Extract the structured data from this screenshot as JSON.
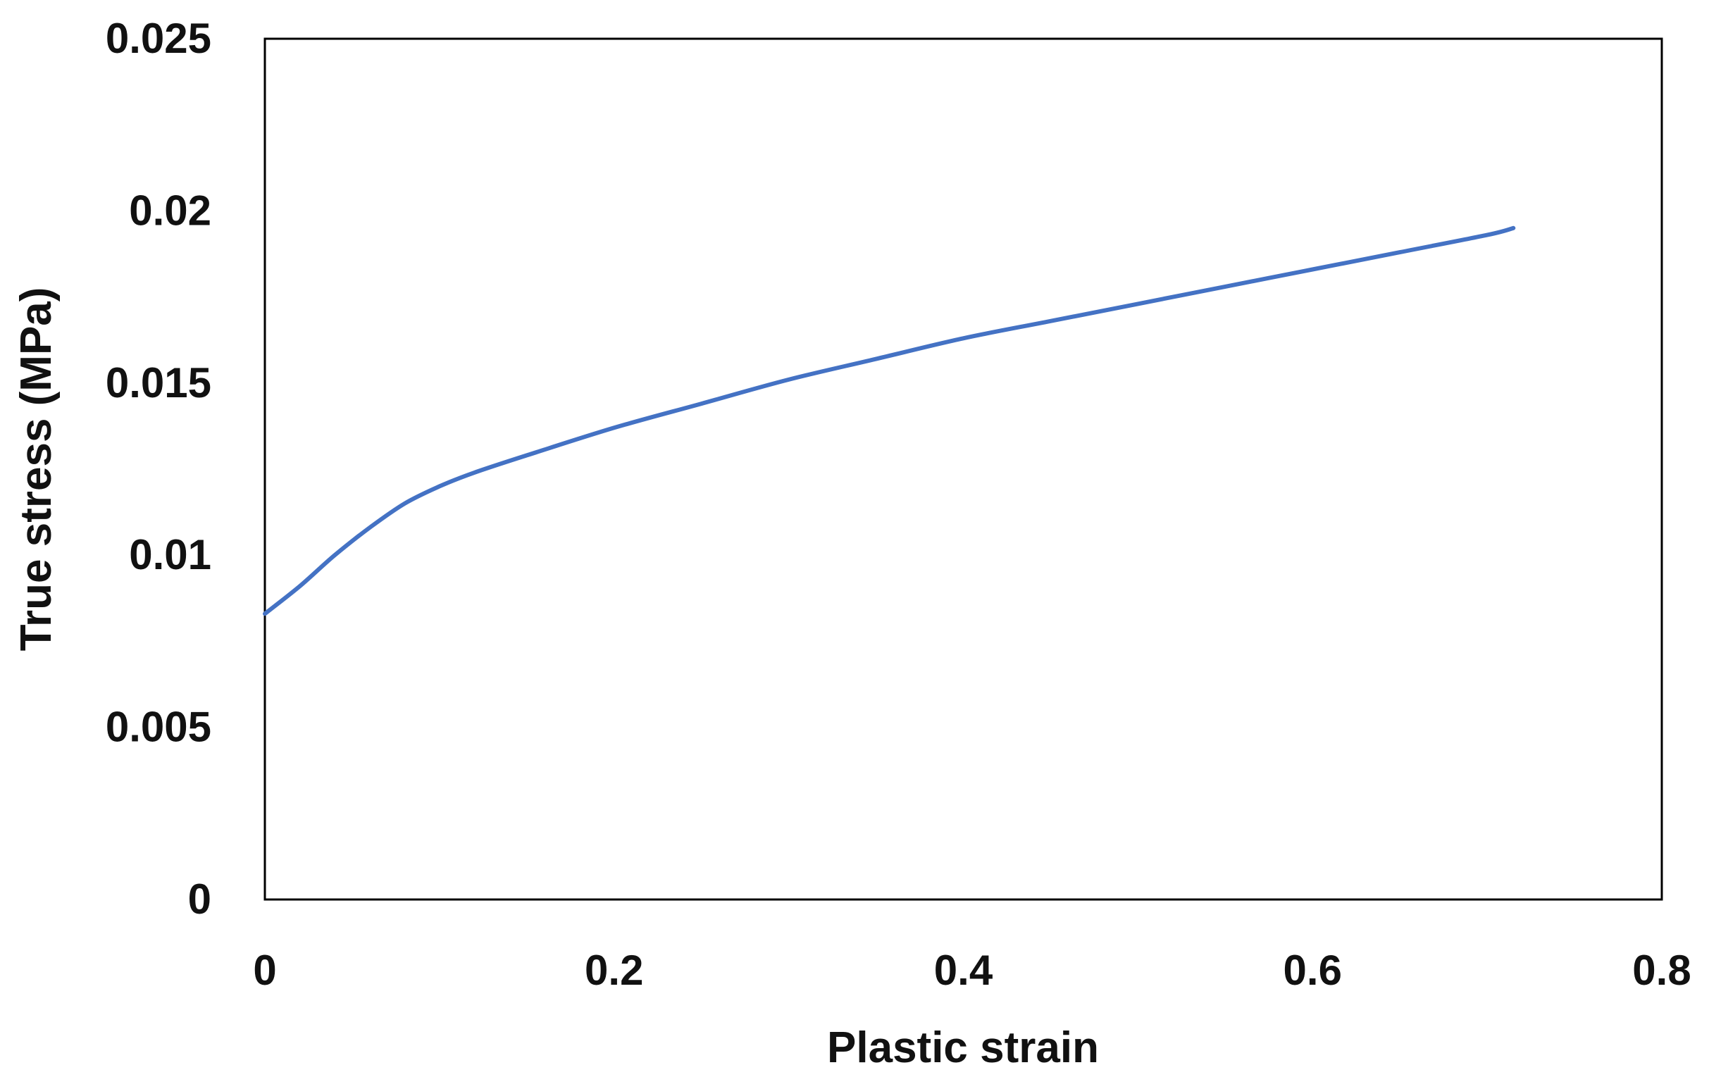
{
  "chart_data": {
    "type": "line",
    "title": "",
    "xlabel": "Plastic strain",
    "ylabel": "True stress (MPa)",
    "xlim": [
      0,
      0.8
    ],
    "ylim": [
      0,
      0.025
    ],
    "x_ticks": [
      "0",
      "0.2",
      "0.4",
      "0.6",
      "0.8"
    ],
    "y_ticks": [
      "0",
      "0.005",
      "0.01",
      "0.015",
      "0.02",
      "0.025"
    ],
    "x_tick_values": [
      0,
      0.2,
      0.4,
      0.6,
      0.8
    ],
    "y_tick_values": [
      0,
      0.005,
      0.01,
      0.015,
      0.02,
      0.025
    ],
    "grid": false,
    "legend": "none",
    "series": [
      {
        "color": "#4472C4",
        "x": [
          0,
          0.02,
          0.04,
          0.06,
          0.08,
          0.1,
          0.12,
          0.15,
          0.2,
          0.25,
          0.3,
          0.35,
          0.4,
          0.45,
          0.5,
          0.55,
          0.6,
          0.65,
          0.7,
          0.715
        ],
        "y": [
          0.0083,
          0.0091,
          0.01,
          0.0108,
          0.0115,
          0.012,
          0.0124,
          0.0129,
          0.0137,
          0.0144,
          0.0151,
          0.0157,
          0.0163,
          0.0168,
          0.0173,
          0.0178,
          0.0183,
          0.0188,
          0.0193,
          0.0195
        ]
      }
    ]
  }
}
